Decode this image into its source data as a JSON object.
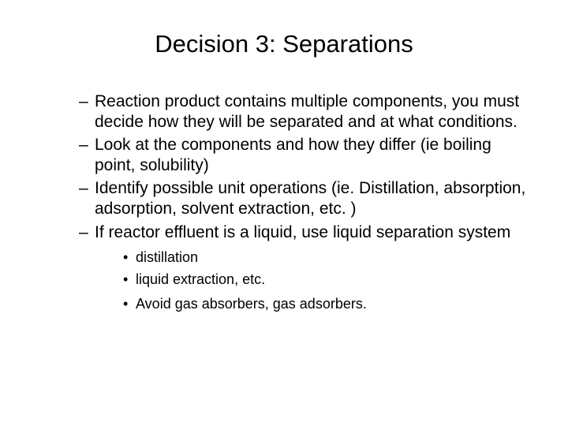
{
  "slide": {
    "title": "Decision 3: Separations",
    "bullets": [
      "Reaction product contains multiple components, you must decide how they will be separated and at what conditions.",
      "Look at the components and how they differ (ie boiling point, solubility)",
      "Identify possible unit operations (ie. Distillation, absorption, adsorption, solvent extraction, etc. )",
      "If reactor effluent is a liquid, use liquid separation system"
    ],
    "subbullets_group1": [
      "distillation",
      "liquid extraction, etc."
    ],
    "subbullets_group2": [
      "Avoid gas absorbers, gas adsorbers."
    ],
    "styling": {
      "background_color": "#ffffff",
      "text_color": "#000000",
      "title_fontsize": 31,
      "bullet_fontsize": 21,
      "subbullet_fontsize": 18,
      "font_family": "Arial",
      "dash_char": "–",
      "dot_char": "•"
    }
  }
}
